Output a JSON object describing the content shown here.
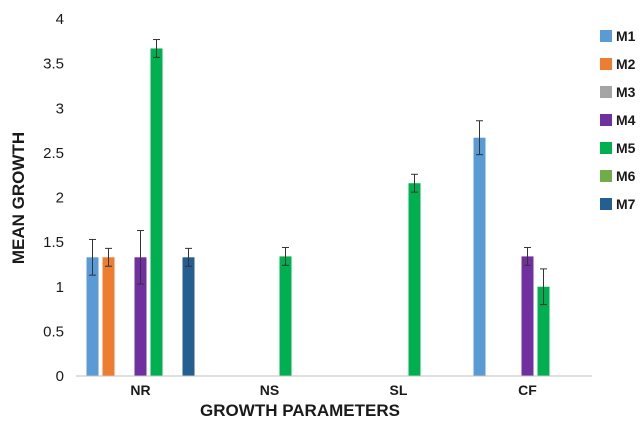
{
  "chart_data": {
    "type": "bar",
    "xlabel": "GROWTH PARAMETERS",
    "ylabel": "MEAN GROWTH",
    "ylim": [
      0,
      4
    ],
    "yticks": [
      "0",
      "0.5",
      "1",
      "1.5",
      "2",
      "2.5",
      "3",
      "3.5",
      "4"
    ],
    "categories": [
      "NR",
      "NS",
      "SL",
      "CF"
    ],
    "grid": false,
    "legend_position": "right",
    "series": [
      {
        "name": "M1",
        "color": "#5b9bd5",
        "values": [
          1.33,
          0,
          0,
          2.67
        ],
        "errors": [
          0.2,
          0,
          0,
          0.19
        ]
      },
      {
        "name": "M2",
        "color": "#ed7d31",
        "values": [
          1.33,
          0,
          0,
          0
        ],
        "errors": [
          0.1,
          0,
          0,
          0
        ]
      },
      {
        "name": "M3",
        "color": "#a5a5a5",
        "values": [
          0,
          0,
          0,
          0
        ],
        "errors": [
          0,
          0,
          0,
          0
        ]
      },
      {
        "name": "M4",
        "color": "#7030a0",
        "values": [
          1.33,
          0,
          0,
          1.34
        ],
        "errors": [
          0.3,
          0,
          0,
          0.1
        ]
      },
      {
        "name": "M5",
        "color": "#00b050",
        "values": [
          3.67,
          1.34,
          2.16,
          1.0
        ],
        "errors": [
          0.1,
          0.1,
          0.1,
          0.2
        ]
      },
      {
        "name": "M6",
        "color": "#70ad47",
        "values": [
          0,
          0,
          0,
          0
        ],
        "errors": [
          0,
          0,
          0,
          0
        ]
      },
      {
        "name": "M7",
        "color": "#255e91",
        "values": [
          1.33,
          0,
          0,
          0
        ],
        "errors": [
          0.1,
          0,
          0,
          0
        ]
      }
    ]
  }
}
